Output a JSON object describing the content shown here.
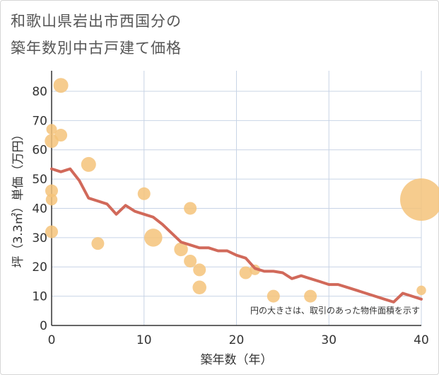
{
  "chart_data": {
    "type": "scatter",
    "title_lines": [
      "和歌山県岩出市西国分の",
      "築年数別中古戸建て価格"
    ],
    "xlabel": "築年数（年）",
    "ylabel": "坪（3.3㎡）単価（万円）",
    "xlim": [
      0,
      40
    ],
    "ylim": [
      0,
      87
    ],
    "xticks": [
      "0",
      "10",
      "20",
      "30",
      "40"
    ],
    "yticks": [
      "0",
      "10",
      "20",
      "30",
      "40",
      "50",
      "60",
      "70",
      "80"
    ],
    "note": "円の大きさは、取引のあった物件面積を示す",
    "grid": true,
    "colors": {
      "bubble": "#f5c37a",
      "line": "#d1695a",
      "grid": "#c8d4e6",
      "axis": "#333333"
    },
    "bubbles": [
      {
        "x": 0,
        "y": 67,
        "s": 1.0
      },
      {
        "x": 0,
        "y": 63,
        "s": 1.3
      },
      {
        "x": 0,
        "y": 46,
        "s": 1.2
      },
      {
        "x": 0,
        "y": 43,
        "s": 1.1
      },
      {
        "x": 0,
        "y": 32,
        "s": 1.2
      },
      {
        "x": 1,
        "y": 82,
        "s": 1.4
      },
      {
        "x": 1,
        "y": 65,
        "s": 1.2
      },
      {
        "x": 4,
        "y": 55,
        "s": 1.4
      },
      {
        "x": 5,
        "y": 28,
        "s": 1.2
      },
      {
        "x": 10,
        "y": 45,
        "s": 1.2
      },
      {
        "x": 11,
        "y": 30,
        "s": 1.7
      },
      {
        "x": 14,
        "y": 26,
        "s": 1.3
      },
      {
        "x": 15,
        "y": 40,
        "s": 1.2
      },
      {
        "x": 15,
        "y": 22,
        "s": 1.2
      },
      {
        "x": 16,
        "y": 19,
        "s": 1.2
      },
      {
        "x": 16,
        "y": 13,
        "s": 1.3
      },
      {
        "x": 21,
        "y": 18,
        "s": 1.2
      },
      {
        "x": 22,
        "y": 19,
        "s": 1.0
      },
      {
        "x": 24,
        "y": 10,
        "s": 1.2
      },
      {
        "x": 28,
        "y": 10,
        "s": 1.2
      },
      {
        "x": 40,
        "y": 43,
        "s": 4.0
      },
      {
        "x": 40,
        "y": 12,
        "s": 0.9
      }
    ],
    "series": [
      {
        "x": [
          0,
          1,
          2,
          3,
          4,
          5,
          6,
          7,
          8,
          9,
          10,
          11,
          12,
          13,
          14,
          15,
          16,
          17,
          18,
          19,
          20,
          21,
          22,
          23,
          24,
          25,
          26,
          27,
          28,
          29,
          30,
          31,
          32,
          33,
          34,
          35,
          36,
          37,
          38,
          39,
          40
        ],
        "values": [
          53.5,
          52.5,
          53.5,
          49.5,
          43.5,
          42.5,
          41.5,
          38,
          41,
          39,
          38,
          37,
          34.5,
          31.5,
          28.5,
          27.5,
          26.5,
          26.5,
          25.5,
          25.5,
          24,
          23,
          19.5,
          18.5,
          18.5,
          18,
          16,
          17,
          16,
          15,
          14,
          14,
          13,
          12,
          11,
          10,
          9,
          8,
          11,
          10,
          9
        ]
      }
    ]
  }
}
